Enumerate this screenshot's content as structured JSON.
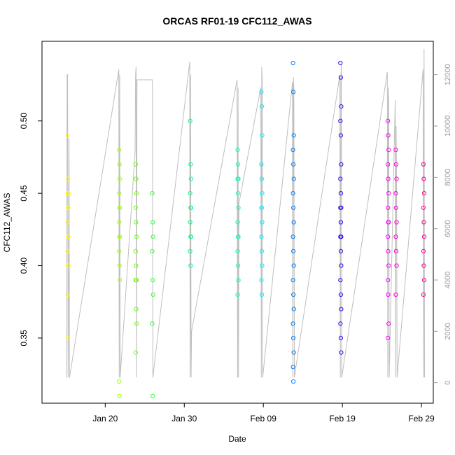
{
  "chart_data": {
    "type": "scatter",
    "title": "ORCAS RF01-19 CFC112_AWAS",
    "xlabel": "Date",
    "ylabel": "CFC112_AWAS",
    "x_tick_labels": [
      "Jan 20",
      "Jan 30",
      "Feb 09",
      "Feb 19",
      "Feb 29"
    ],
    "x_tick_days": [
      20,
      30,
      40,
      50,
      60
    ],
    "xlim_days": [
      12.0,
      61.5
    ],
    "ylim": [
      0.305,
      0.555
    ],
    "y_ticks": [
      0.35,
      0.4,
      0.45,
      0.5
    ],
    "y_tick_labels": [
      "0.35",
      "0.40",
      "0.45",
      "0.50"
    ],
    "y2_label": "",
    "y2lim": [
      -800,
      13300
    ],
    "y2_ticks": [
      0,
      2000,
      4000,
      6000,
      8000,
      10000,
      12000
    ],
    "y2_tick_labels": [
      "0",
      "2000",
      "4000",
      "6000",
      "8000",
      "10000",
      "12000"
    ],
    "grid": false,
    "legend": "none",
    "altitude_line_color": "#bebebe",
    "flights": [
      {
        "day": 15.3,
        "color": "#ffff00",
        "values": [
          0.49,
          0.46,
          0.45,
          0.45,
          0.44,
          0.44,
          0.43,
          0.42,
          0.42,
          0.41,
          0.4,
          0.4,
          0.38,
          0.35
        ]
      },
      {
        "day": 21.8,
        "color": "#aaff00",
        "values": [
          0.48,
          0.47,
          0.46,
          0.45,
          0.44,
          0.44,
          0.43,
          0.42,
          0.42,
          0.41,
          0.4,
          0.39,
          0.32,
          0.31
        ]
      },
      {
        "day": 23.9,
        "color": "#66ff00",
        "values": [
          0.47,
          0.46,
          0.45,
          0.44,
          0.43,
          0.42,
          0.41,
          0.4,
          0.39,
          0.39,
          0.37,
          0.36,
          0.34
        ]
      },
      {
        "day": 26.0,
        "color": "#33ff33",
        "values": [
          0.45,
          0.43,
          0.42,
          0.41,
          0.39,
          0.38,
          0.36,
          0.31
        ]
      },
      {
        "day": 30.8,
        "color": "#00ff80",
        "values": [
          0.5,
          0.47,
          0.46,
          0.45,
          0.44,
          0.44,
          0.43,
          0.42,
          0.42,
          0.41,
          0.4
        ]
      },
      {
        "day": 36.8,
        "color": "#00ffc0",
        "values": [
          0.48,
          0.47,
          0.46,
          0.46,
          0.45,
          0.44,
          0.43,
          0.42,
          0.42,
          0.41,
          0.4,
          0.39,
          0.38
        ]
      },
      {
        "day": 39.8,
        "color": "#00f0ff",
        "values": [
          0.52,
          0.51,
          0.49,
          0.47,
          0.46,
          0.45,
          0.44,
          0.44,
          0.43,
          0.42,
          0.41,
          0.4,
          0.39,
          0.38
        ]
      },
      {
        "day": 43.8,
        "color": "#0080ff",
        "values": [
          0.54,
          0.52,
          0.49,
          0.48,
          0.47,
          0.46,
          0.45,
          0.44,
          0.43,
          0.42,
          0.41,
          0.4,
          0.39,
          0.38,
          0.37,
          0.36,
          0.35,
          0.34,
          0.33,
          0.32
        ]
      },
      {
        "day": 49.8,
        "color": "#3300ff",
        "values": [
          0.54,
          0.53,
          0.51,
          0.5,
          0.49,
          0.47,
          0.46,
          0.45,
          0.44,
          0.44,
          0.43,
          0.42,
          0.42,
          0.41,
          0.4,
          0.39,
          0.38,
          0.37,
          0.36,
          0.35,
          0.34
        ]
      },
      {
        "day": 55.8,
        "color": "#ff00ff",
        "values": [
          0.5,
          0.49,
          0.48,
          0.47,
          0.46,
          0.45,
          0.44,
          0.43,
          0.43,
          0.42,
          0.41,
          0.4,
          0.39,
          0.38,
          0.36,
          0.35
        ]
      },
      {
        "day": 56.8,
        "color": "#ff00cc",
        "values": [
          0.48,
          0.47,
          0.46,
          0.45,
          0.44,
          0.43,
          0.42,
          0.41,
          0.4,
          0.38
        ]
      },
      {
        "day": 60.3,
        "color": "#ff0088",
        "values": [
          0.47,
          0.46,
          0.45,
          0.44,
          0.43,
          0.42,
          0.41,
          0.4,
          0.39,
          0.38
        ]
      }
    ],
    "altitude_track": [
      {
        "day": 15.3,
        "values": [
          200,
          12000,
          12000,
          200,
          2000,
          9500,
          200
        ]
      },
      {
        "day": 21.8,
        "values": [
          12200,
          200,
          12000,
          200
        ]
      },
      {
        "day": 23.9,
        "values": [
          9000,
          12000,
          12300,
          200,
          11800
        ]
      },
      {
        "day": 26.0,
        "values": [
          11800,
          200
        ]
      },
      {
        "day": 30.8,
        "values": [
          12500,
          200,
          12000,
          200,
          2000
        ]
      },
      {
        "day": 36.8,
        "values": [
          11800,
          200,
          11500,
          200,
          7000
        ]
      },
      {
        "day": 39.8,
        "values": [
          11500,
          200,
          12300,
          11800,
          200
        ]
      },
      {
        "day": 43.8,
        "values": [
          11700,
          200,
          11900,
          11500,
          200
        ]
      },
      {
        "day": 49.8,
        "values": [
          12000,
          200,
          11800,
          12400,
          200
        ]
      },
      {
        "day": 55.8,
        "values": [
          12100,
          200,
          11500,
          11000,
          200
        ]
      },
      {
        "day": 56.8,
        "values": [
          11000,
          200,
          10000,
          7500,
          200
        ]
      },
      {
        "day": 60.3,
        "values": [
          12200,
          200,
          13000,
          200
        ]
      }
    ]
  }
}
